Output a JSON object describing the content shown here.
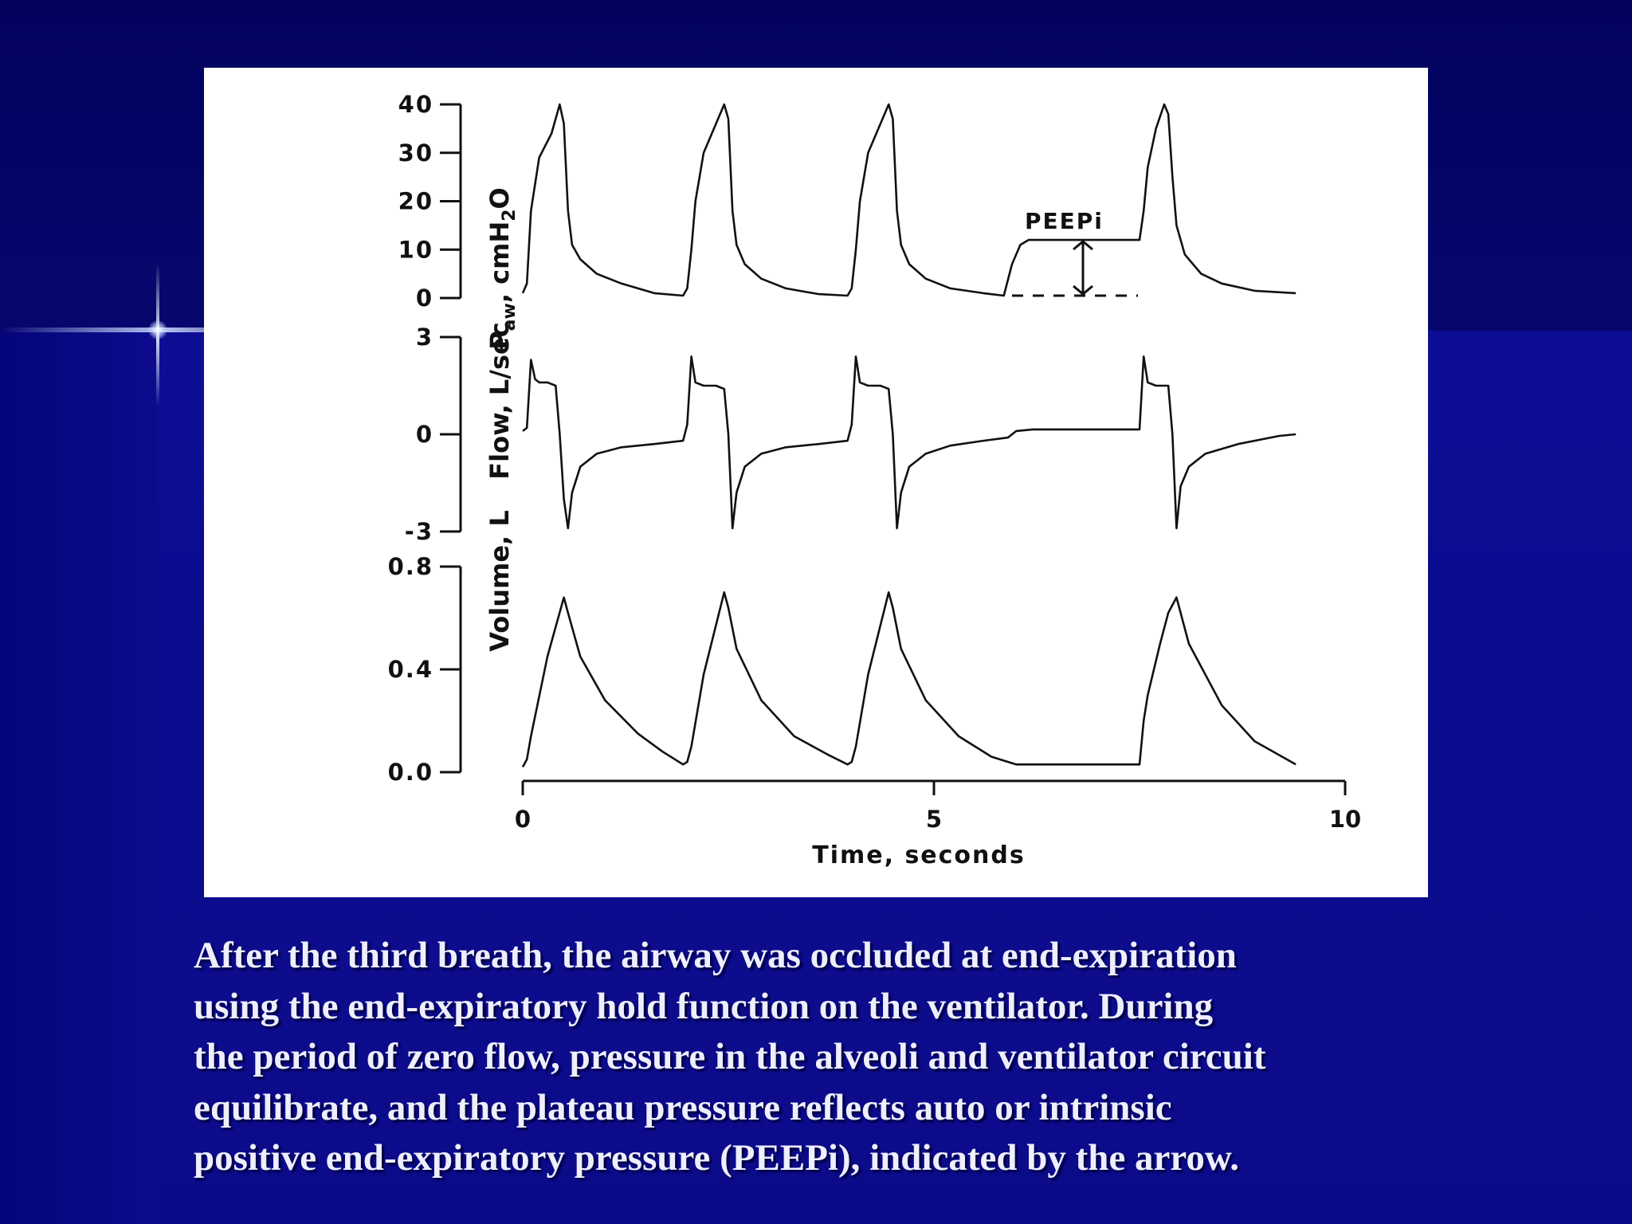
{
  "slide": {
    "caption_lines": [
      "After the third breath, the airway was occluded at end-expiration",
      "using the end-expiratory hold function on the ventilator. During",
      "the period of zero flow, pressure in the alveoli and ventilator circuit",
      "equilibrate, and the plateau pressure reflects auto or intrinsic",
      "positive end-expiratory pressure (PEEPi), indicated by the arrow."
    ],
    "background_color": "#0a0a86",
    "panel_color": "#ffffff"
  },
  "chart_data": {
    "type": "line",
    "xlabel": "Time, seconds",
    "xlim": [
      0,
      10
    ],
    "xticks": [
      "0",
      "5",
      "10"
    ],
    "panels": [
      {
        "ylabel": "Paw, cmH2O",
        "ylabel_main": "P",
        "ylabel_sub": "aw",
        "ylabel_rest": ", cmH",
        "ylabel_sub2": "2",
        "ylabel_end": "O",
        "ylim": [
          0,
          40
        ],
        "yticks": [
          "40",
          "30",
          "20",
          "10",
          "0"
        ],
        "series": [
          {
            "x": [
              0,
              0.05,
              0.1,
              0.2,
              0.35,
              0.45,
              0.5,
              0.55,
              0.6,
              0.7,
              0.9,
              1.2,
              1.6,
              1.95,
              2.0,
              2.05,
              2.1,
              2.2,
              2.35,
              2.45,
              2.5,
              2.55,
              2.6,
              2.7,
              2.9,
              3.2,
              3.6,
              3.95,
              4.0,
              4.05,
              4.1,
              4.2,
              4.35,
              4.45,
              4.5,
              4.55,
              4.6,
              4.7,
              4.9,
              5.2,
              5.6,
              5.85,
              5.95,
              6.05,
              6.15,
              6.3,
              6.8,
              7.2,
              7.5,
              7.55,
              7.6,
              7.7,
              7.8,
              7.85,
              7.9,
              7.95,
              8.05,
              8.25,
              8.5,
              8.9,
              9.4
            ],
            "y": [
              1,
              3,
              18,
              29,
              34,
              40,
              36,
              18,
              11,
              8,
              5,
              3,
              1,
              0.5,
              2,
              10,
              20,
              30,
              36,
              40,
              37,
              18,
              11,
              7,
              4,
              2,
              0.8,
              0.5,
              2,
              10,
              20,
              30,
              36,
              40,
              37,
              18,
              11,
              7,
              4,
              2,
              1,
              0.5,
              7,
              11,
              12,
              12,
              12,
              12,
              12,
              18,
              27,
              35,
              40,
              38,
              25,
              15,
              9,
              5,
              3,
              1.5,
              1
            ]
          }
        ],
        "annotations": [
          {
            "text": "PEEPi",
            "type": "label"
          },
          {
            "type": "double-arrow",
            "x": 6.9,
            "y_from": 0,
            "y_to": 12
          },
          {
            "type": "dashed-baseline",
            "x_from": 5.9,
            "x_to": 7.5,
            "y": 0
          }
        ]
      },
      {
        "ylabel": "Flow, L/sec",
        "ylim": [
          -3,
          3
        ],
        "yticks": [
          "3",
          "0",
          "-3"
        ],
        "series": [
          {
            "x": [
              0,
              0.05,
              0.1,
              0.15,
              0.2,
              0.3,
              0.4,
              0.45,
              0.5,
              0.55,
              0.6,
              0.7,
              0.9,
              1.2,
              1.6,
              1.95,
              2.0,
              2.05,
              2.1,
              2.2,
              2.35,
              2.45,
              2.5,
              2.55,
              2.6,
              2.7,
              2.9,
              3.2,
              3.6,
              3.95,
              4.0,
              4.05,
              4.1,
              4.2,
              4.35,
              4.45,
              4.5,
              4.55,
              4.6,
              4.7,
              4.9,
              5.2,
              5.6,
              5.9,
              6.0,
              6.2,
              7.5,
              7.55,
              7.6,
              7.7,
              7.85,
              7.9,
              7.95,
              8.0,
              8.1,
              8.3,
              8.7,
              9.2,
              9.4
            ],
            "y": [
              0.1,
              0.2,
              2.3,
              1.7,
              1.6,
              1.6,
              1.5,
              0,
              -2,
              -2.9,
              -1.8,
              -1.0,
              -0.6,
              -0.4,
              -0.3,
              -0.2,
              0.3,
              2.4,
              1.6,
              1.5,
              1.5,
              1.4,
              0,
              -2.9,
              -1.8,
              -1.0,
              -0.6,
              -0.4,
              -0.3,
              -0.2,
              0.3,
              2.4,
              1.6,
              1.5,
              1.5,
              1.4,
              0,
              -2.9,
              -1.8,
              -1.0,
              -0.6,
              -0.35,
              -0.2,
              -0.1,
              0.1,
              0.15,
              0.15,
              2.4,
              1.6,
              1.5,
              1.5,
              0,
              -2.9,
              -1.6,
              -1.0,
              -0.6,
              -0.3,
              -0.05,
              0
            ]
          }
        ]
      },
      {
        "ylabel": "Volume, L",
        "ylim": [
          0,
          0.8
        ],
        "yticks": [
          "0.8",
          "0.4",
          "0.0"
        ],
        "series": [
          {
            "x": [
              0,
              0.05,
              0.1,
              0.3,
              0.5,
              0.55,
              0.7,
              1.0,
              1.4,
              1.7,
              1.95,
              2.0,
              2.05,
              2.2,
              2.45,
              2.5,
              2.6,
              2.9,
              3.3,
              3.7,
              3.95,
              4.0,
              4.05,
              4.2,
              4.45,
              4.5,
              4.6,
              4.9,
              5.3,
              5.7,
              5.9,
              6.0,
              7.5,
              7.55,
              7.6,
              7.75,
              7.85,
              7.95,
              8.1,
              8.5,
              8.9,
              9.4
            ],
            "y": [
              0.02,
              0.05,
              0.14,
              0.45,
              0.68,
              0.62,
              0.45,
              0.28,
              0.15,
              0.08,
              0.03,
              0.04,
              0.1,
              0.38,
              0.7,
              0.64,
              0.48,
              0.28,
              0.14,
              0.07,
              0.03,
              0.04,
              0.1,
              0.38,
              0.7,
              0.64,
              0.48,
              0.28,
              0.14,
              0.06,
              0.04,
              0.03,
              0.03,
              0.2,
              0.3,
              0.5,
              0.62,
              0.68,
              0.5,
              0.26,
              0.12,
              0.03
            ]
          }
        ]
      }
    ]
  }
}
